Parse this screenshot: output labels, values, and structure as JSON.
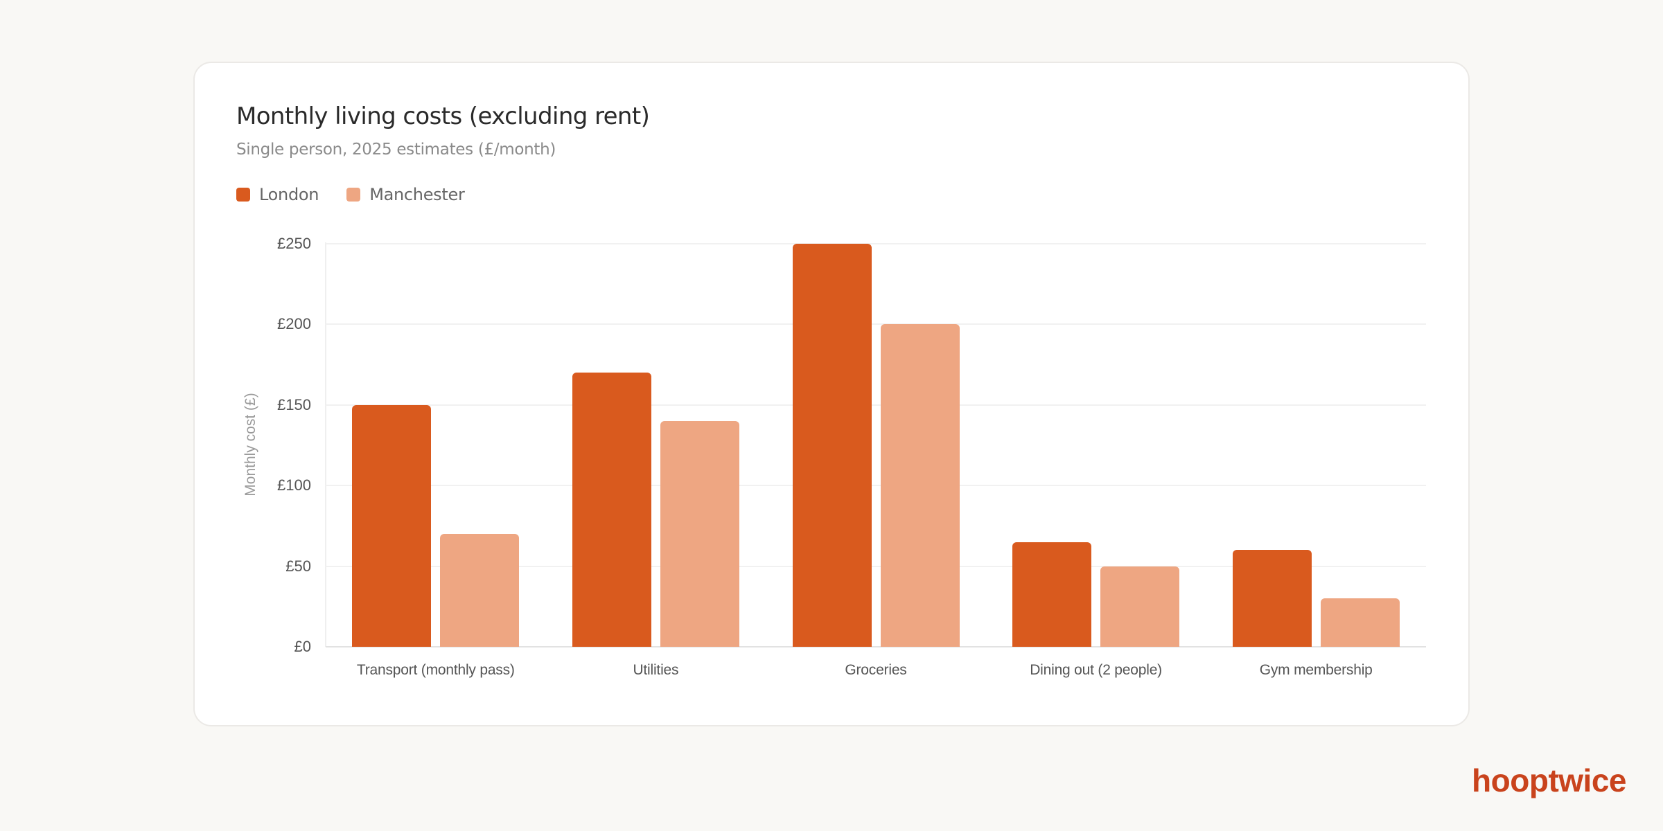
{
  "header": {
    "title": "Monthly living costs (excluding rent)",
    "subtitle": "Single person, 2025 estimates (£/month)"
  },
  "legend": [
    {
      "label": "London",
      "color": "#d95a1e"
    },
    {
      "label": "Manchester",
      "color": "#eea682"
    }
  ],
  "axis": {
    "ylabel": "Monthly cost (£)",
    "yticks": [
      "£0",
      "£50",
      "£100",
      "£150",
      "£200",
      "£250"
    ]
  },
  "brand": {
    "logo": "hooptwice",
    "color": "#c9431c"
  },
  "chart_data": {
    "type": "bar",
    "title": "Monthly living costs (excluding rent)",
    "subtitle": "Single person, 2025 estimates (£/month)",
    "categories": [
      "Transport (monthly pass)",
      "Utilities",
      "Groceries",
      "Dining out (2 people)",
      "Gym membership"
    ],
    "series": [
      {
        "name": "London",
        "color": "#d95a1e",
        "values": [
          150,
          170,
          250,
          65,
          60
        ]
      },
      {
        "name": "Manchester",
        "color": "#eea682",
        "values": [
          70,
          140,
          200,
          50,
          30
        ]
      }
    ],
    "xlabel": "",
    "ylabel": "Monthly cost (£)",
    "ylim": [
      0,
      250
    ],
    "yticks": [
      0,
      50,
      100,
      150,
      200,
      250
    ],
    "grid": true,
    "legend_position": "top-left"
  }
}
